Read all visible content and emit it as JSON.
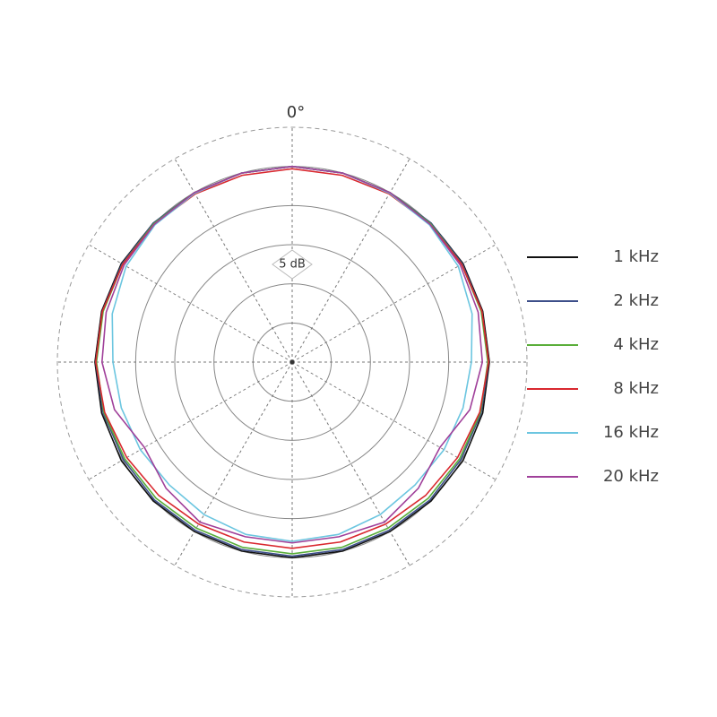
{
  "chart_data": {
    "type": "polar",
    "theta": [
      0,
      15,
      30,
      45,
      60,
      75,
      90,
      105,
      120,
      135,
      150,
      165,
      180,
      195,
      210,
      225,
      240,
      255,
      270,
      285,
      300,
      315,
      330,
      345
    ],
    "rlim": [
      -30,
      0
    ],
    "rticks": [
      -25,
      -20,
      -15,
      -10,
      -5,
      0
    ],
    "thetaticks": [
      0,
      30,
      60,
      90,
      120,
      150,
      180,
      210,
      240,
      270,
      300,
      330
    ],
    "annotations": [
      "0°",
      "5 dB"
    ],
    "legend": "right",
    "series": [
      {
        "name": "1 kHz",
        "color": "#111111",
        "values": [
          -5,
          -5,
          -5,
          -4.9,
          -4.8,
          -4.8,
          -4.8,
          -4.8,
          -4.8,
          -4.9,
          -5,
          -5,
          -5,
          -5,
          -5,
          -4.9,
          -4.8,
          -4.8,
          -4.8,
          -4.8,
          -4.8,
          -4.9,
          -5,
          -5
        ]
      },
      {
        "name": "2 kHz",
        "color": "#3d4f8a",
        "values": [
          -5,
          -5,
          -5,
          -4.9,
          -4.9,
          -4.9,
          -4.9,
          -5,
          -5.1,
          -5.1,
          -5.2,
          -5.2,
          -5.2,
          -5.2,
          -5.2,
          -5.1,
          -5.1,
          -5,
          -4.9,
          -4.9,
          -4.9,
          -4.9,
          -5,
          -5
        ]
      },
      {
        "name": "4 kHz",
        "color": "#5aae3a",
        "values": [
          -5,
          -5,
          -5,
          -5,
          -5,
          -5,
          -5,
          -5.1,
          -5.3,
          -5.4,
          -5.5,
          -5.5,
          -5.5,
          -5.5,
          -5.5,
          -5.4,
          -5.3,
          -5.1,
          -5,
          -5,
          -5,
          -5,
          -5,
          -5
        ]
      },
      {
        "name": "8 kHz",
        "color": "#d9282f",
        "values": [
          -5.3,
          -5.3,
          -5.2,
          -5.1,
          -5,
          -4.9,
          -4.9,
          -5.2,
          -5.6,
          -5.9,
          -6.1,
          -6.2,
          -6.2,
          -6.2,
          -6.1,
          -5.9,
          -5.6,
          -5.2,
          -4.9,
          -4.9,
          -5,
          -5.1,
          -5.2,
          -5.3
        ]
      },
      {
        "name": "16 kHz",
        "color": "#6cc6e0",
        "values": [
          -5,
          -5,
          -5.1,
          -5.2,
          -5.5,
          -6.2,
          -7.1,
          -7.4,
          -7.6,
          -7.8,
          -7.5,
          -7.2,
          -7.1,
          -7.2,
          -7.5,
          -7.8,
          -7.6,
          -7.4,
          -7.1,
          -6.2,
          -5.5,
          -5.2,
          -5.1,
          -5
        ]
      },
      {
        "name": "20 kHz",
        "color": "#a0409a",
        "values": [
          -5,
          -5,
          -5,
          -5.1,
          -5.2,
          -5.4,
          -5.7,
          -6.5,
          -8.2,
          -7.2,
          -6.4,
          -6.9,
          -6.9,
          -6.9,
          -6.4,
          -7.2,
          -8.2,
          -6.5,
          -5.7,
          -5.4,
          -5.2,
          -5.1,
          -5,
          -5
        ]
      }
    ]
  }
}
